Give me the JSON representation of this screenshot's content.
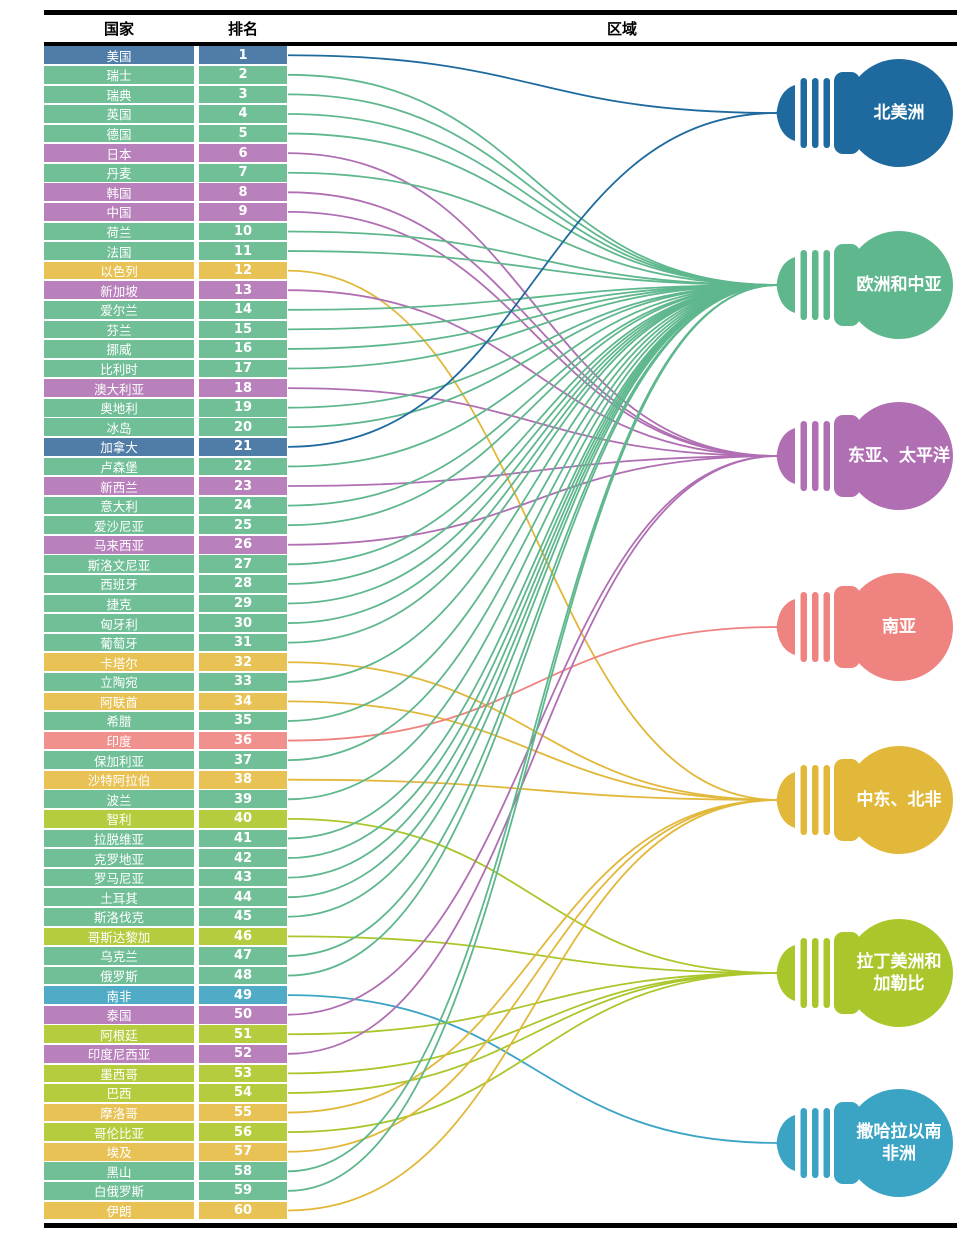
{
  "header": {
    "country": "国家",
    "rank": "排名",
    "region": "区域"
  },
  "chart_data": {
    "type": "table",
    "title": "",
    "columns": [
      "国家",
      "排名",
      "区域"
    ],
    "regions": [
      {
        "id": "north-america",
        "label": "北美洲",
        "lines": [
          "北美洲"
        ],
        "color": "#1e6a9e",
        "row_color": "#4f7da8"
      },
      {
        "id": "europe-central-asia",
        "label": "欧洲和中亚",
        "lines": [
          "欧洲和中亚"
        ],
        "color": "#5fb78d",
        "row_color": "#70bf97"
      },
      {
        "id": "east-asia-pacific",
        "label": "东亚、太平洋",
        "lines": [
          "东亚、太平洋"
        ],
        "color": "#b06fb3",
        "row_color": "#b981bb"
      },
      {
        "id": "south-asia",
        "label": "南亚",
        "lines": [
          "南亚"
        ],
        "color": "#ee8380",
        "row_color": "#f0918d"
      },
      {
        "id": "middle-east-north-africa",
        "label": "中东、北非",
        "lines": [
          "中东、北非"
        ],
        "color": "#e2b83b",
        "row_color": "#e8c254"
      },
      {
        "id": "latin-america-caribbean",
        "label": "拉丁美洲和加勒比",
        "lines": [
          "拉丁美洲和",
          "加勒比"
        ],
        "color": "#a9c72b",
        "row_color": "#b5cc3e"
      },
      {
        "id": "sub-saharan-africa",
        "label": "撒哈拉以南非洲",
        "lines": [
          "撒哈拉以南",
          "非洲"
        ],
        "color": "#3ba4c4",
        "row_color": "#4fabc6"
      }
    ],
    "rows": [
      {
        "rank": 1,
        "country": "美国",
        "region": "北美洲"
      },
      {
        "rank": 2,
        "country": "瑞士",
        "region": "欧洲和中亚"
      },
      {
        "rank": 3,
        "country": "瑞典",
        "region": "欧洲和中亚"
      },
      {
        "rank": 4,
        "country": "英国",
        "region": "欧洲和中亚"
      },
      {
        "rank": 5,
        "country": "德国",
        "region": "欧洲和中亚"
      },
      {
        "rank": 6,
        "country": "日本",
        "region": "东亚、太平洋"
      },
      {
        "rank": 7,
        "country": "丹麦",
        "region": "欧洲和中亚"
      },
      {
        "rank": 8,
        "country": "韩国",
        "region": "东亚、太平洋"
      },
      {
        "rank": 9,
        "country": "中国",
        "region": "东亚、太平洋"
      },
      {
        "rank": 10,
        "country": "荷兰",
        "region": "欧洲和中亚"
      },
      {
        "rank": 11,
        "country": "法国",
        "region": "欧洲和中亚"
      },
      {
        "rank": 12,
        "country": "以色列",
        "region": "中东、北非"
      },
      {
        "rank": 13,
        "country": "新加坡",
        "region": "东亚、太平洋"
      },
      {
        "rank": 14,
        "country": "爱尔兰",
        "region": "欧洲和中亚"
      },
      {
        "rank": 15,
        "country": "芬兰",
        "region": "欧洲和中亚"
      },
      {
        "rank": 16,
        "country": "挪威",
        "region": "欧洲和中亚"
      },
      {
        "rank": 17,
        "country": "比利时",
        "region": "欧洲和中亚"
      },
      {
        "rank": 18,
        "country": "澳大利亚",
        "region": "东亚、太平洋"
      },
      {
        "rank": 19,
        "country": "奥地利",
        "region": "欧洲和中亚"
      },
      {
        "rank": 20,
        "country": "冰岛",
        "region": "欧洲和中亚"
      },
      {
        "rank": 21,
        "country": "加拿大",
        "region": "北美洲"
      },
      {
        "rank": 22,
        "country": "卢森堡",
        "region": "欧洲和中亚"
      },
      {
        "rank": 23,
        "country": "新西兰",
        "region": "东亚、太平洋"
      },
      {
        "rank": 24,
        "country": "意大利",
        "region": "欧洲和中亚"
      },
      {
        "rank": 25,
        "country": "爱沙尼亚",
        "region": "欧洲和中亚"
      },
      {
        "rank": 26,
        "country": "马来西亚",
        "region": "东亚、太平洋"
      },
      {
        "rank": 27,
        "country": "斯洛文尼亚",
        "region": "欧洲和中亚"
      },
      {
        "rank": 28,
        "country": "西班牙",
        "region": "欧洲和中亚"
      },
      {
        "rank": 29,
        "country": "捷克",
        "region": "欧洲和中亚"
      },
      {
        "rank": 30,
        "country": "匈牙利",
        "region": "欧洲和中亚"
      },
      {
        "rank": 31,
        "country": "葡萄牙",
        "region": "欧洲和中亚"
      },
      {
        "rank": 32,
        "country": "卡塔尔",
        "region": "中东、北非"
      },
      {
        "rank": 33,
        "country": "立陶宛",
        "region": "欧洲和中亚"
      },
      {
        "rank": 34,
        "country": "阿联酋",
        "region": "中东、北非"
      },
      {
        "rank": 35,
        "country": "希腊",
        "region": "欧洲和中亚"
      },
      {
        "rank": 36,
        "country": "印度",
        "region": "南亚"
      },
      {
        "rank": 37,
        "country": "保加利亚",
        "region": "欧洲和中亚"
      },
      {
        "rank": 38,
        "country": "沙特阿拉伯",
        "region": "中东、北非"
      },
      {
        "rank": 39,
        "country": "波兰",
        "region": "欧洲和中亚"
      },
      {
        "rank": 40,
        "country": "智利",
        "region": "拉丁美洲和加勒比"
      },
      {
        "rank": 41,
        "country": "拉脱维亚",
        "region": "欧洲和中亚"
      },
      {
        "rank": 42,
        "country": "克罗地亚",
        "region": "欧洲和中亚"
      },
      {
        "rank": 43,
        "country": "罗马尼亚",
        "region": "欧洲和中亚"
      },
      {
        "rank": 44,
        "country": "土耳其",
        "region": "欧洲和中亚"
      },
      {
        "rank": 45,
        "country": "斯洛伐克",
        "region": "欧洲和中亚"
      },
      {
        "rank": 46,
        "country": "哥斯达黎加",
        "region": "拉丁美洲和加勒比"
      },
      {
        "rank": 47,
        "country": "乌克兰",
        "region": "欧洲和中亚"
      },
      {
        "rank": 48,
        "country": "俄罗斯",
        "region": "欧洲和中亚"
      },
      {
        "rank": 49,
        "country": "南非",
        "region": "撒哈拉以南非洲"
      },
      {
        "rank": 50,
        "country": "泰国",
        "region": "东亚、太平洋"
      },
      {
        "rank": 51,
        "country": "阿根廷",
        "region": "拉丁美洲和加勒比"
      },
      {
        "rank": 52,
        "country": "印度尼西亚",
        "region": "东亚、太平洋"
      },
      {
        "rank": 53,
        "country": "墨西哥",
        "region": "拉丁美洲和加勒比"
      },
      {
        "rank": 54,
        "country": "巴西",
        "region": "拉丁美洲和加勒比"
      },
      {
        "rank": 55,
        "country": "摩洛哥",
        "region": "中东、北非"
      },
      {
        "rank": 56,
        "country": "哥伦比亚",
        "region": "拉丁美洲和加勒比"
      },
      {
        "rank": 57,
        "country": "埃及",
        "region": "中东、北非"
      },
      {
        "rank": 58,
        "country": "黑山",
        "region": "欧洲和中亚"
      },
      {
        "rank": 59,
        "country": "白俄罗斯",
        "region": "欧洲和中亚"
      },
      {
        "rank": 60,
        "country": "伊朗",
        "region": "中东、北非"
      }
    ]
  }
}
